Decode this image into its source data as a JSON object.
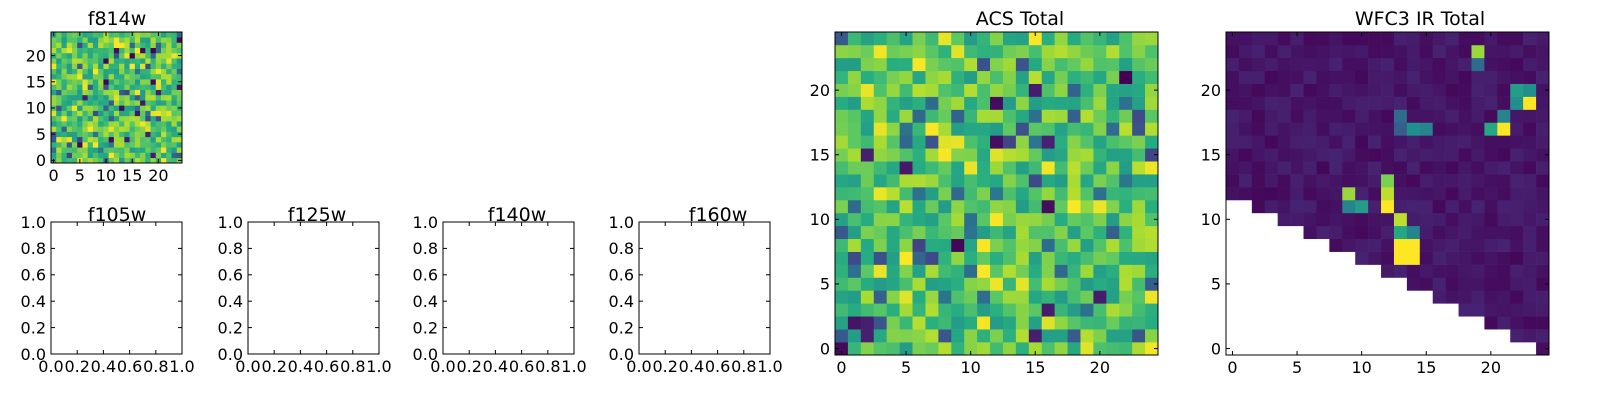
{
  "figure": {
    "colormap": [
      "#440154",
      "#472c7a",
      "#3b518b",
      "#2c718e",
      "#21908d",
      "#27ad81",
      "#5cc863",
      "#aadc32",
      "#fde725"
    ]
  },
  "chart_data": [
    {
      "id": "f814w",
      "type": "heatmap",
      "title": "f814w",
      "xlabel": "",
      "ylabel": "",
      "rows": 25,
      "cols": 25,
      "xlim": [
        -0.5,
        24.5
      ],
      "ylim": [
        -0.5,
        24.5
      ],
      "xticks": [
        0,
        5,
        10,
        15,
        20
      ],
      "yticks": [
        0,
        5,
        10,
        15,
        20
      ],
      "grid": false,
      "values_note": "",
      "seed": 814,
      "low_rows": 0
    },
    {
      "id": "f105w",
      "type": "empty",
      "title": "f105w",
      "xlim": [
        0,
        1
      ],
      "ylim": [
        0,
        1
      ],
      "xticks": [
        "0.0",
        "0.2",
        "0.4",
        "0.6",
        "0.8",
        "1.0"
      ],
      "yticks": [
        "0.0",
        "0.2",
        "0.4",
        "0.6",
        "0.8",
        "1.0"
      ]
    },
    {
      "id": "f125w",
      "type": "empty",
      "title": "f125w",
      "xlim": [
        0,
        1
      ],
      "ylim": [
        0,
        1
      ],
      "xticks": [
        "0.0",
        "0.2",
        "0.4",
        "0.6",
        "0.8",
        "1.0"
      ],
      "yticks": [
        "0.0",
        "0.2",
        "0.4",
        "0.6",
        "0.8",
        "1.0"
      ]
    },
    {
      "id": "f140w",
      "type": "empty",
      "title": "f140w",
      "xlim": [
        0,
        1
      ],
      "ylim": [
        0,
        1
      ],
      "xticks": [
        "0.0",
        "0.2",
        "0.4",
        "0.6",
        "0.8",
        "1.0"
      ],
      "yticks": [
        "0.0",
        "0.2",
        "0.4",
        "0.6",
        "0.8",
        "1.0"
      ]
    },
    {
      "id": "f160w",
      "type": "empty",
      "title": "f160w",
      "xlim": [
        0,
        1
      ],
      "ylim": [
        0,
        1
      ],
      "xticks": [
        "0.0",
        "0.2",
        "0.4",
        "0.6",
        "0.8",
        "1.0"
      ],
      "yticks": [
        "0.0",
        "0.2",
        "0.4",
        "0.6",
        "0.8",
        "1.0"
      ]
    },
    {
      "id": "acs-total",
      "type": "heatmap",
      "title": "ACS Total",
      "rows": 25,
      "cols": 25,
      "xlim": [
        -0.5,
        24.5
      ],
      "ylim": [
        -0.5,
        24.5
      ],
      "xticks": [
        0,
        5,
        10,
        15,
        20
      ],
      "yticks": [
        0,
        5,
        10,
        15,
        20
      ],
      "grid": false,
      "seed": 2017
    },
    {
      "id": "wfc3-ir-total",
      "type": "heatmap",
      "title": "WFC3 IR Total",
      "rows": 25,
      "cols": 25,
      "xlim": [
        -0.5,
        24.5
      ],
      "ylim": [
        -0.5,
        24.5
      ],
      "xticks": [
        0,
        5,
        10,
        15,
        20
      ],
      "yticks": [
        0,
        5,
        10,
        15,
        20
      ],
      "grid": false,
      "masked_lower_triangle": true,
      "bright_pixels": [
        {
          "x": 19,
          "y": 23,
          "v": 0.85
        },
        {
          "x": 19,
          "y": 22,
          "v": 0.35
        },
        {
          "x": 22,
          "y": 20,
          "v": 0.55
        },
        {
          "x": 23,
          "y": 20,
          "v": 0.5
        },
        {
          "x": 23,
          "y": 19,
          "v": 1.0
        },
        {
          "x": 22,
          "y": 19,
          "v": 0.5
        },
        {
          "x": 21,
          "y": 18,
          "v": 0.45
        },
        {
          "x": 20,
          "y": 17,
          "v": 0.6
        },
        {
          "x": 21,
          "y": 17,
          "v": 1.0
        },
        {
          "x": 13,
          "y": 18,
          "v": 0.35
        },
        {
          "x": 14,
          "y": 17,
          "v": 0.5
        },
        {
          "x": 15,
          "y": 17,
          "v": 0.45
        },
        {
          "x": 13,
          "y": 17,
          "v": 0.3
        },
        {
          "x": 9,
          "y": 12,
          "v": 0.85
        },
        {
          "x": 9,
          "y": 11,
          "v": 0.45
        },
        {
          "x": 10,
          "y": 11,
          "v": 0.55
        },
        {
          "x": 12,
          "y": 13,
          "v": 0.8
        },
        {
          "x": 12,
          "y": 12,
          "v": 0.9
        },
        {
          "x": 12,
          "y": 11,
          "v": 1.0
        },
        {
          "x": 13,
          "y": 10,
          "v": 0.9
        },
        {
          "x": 13,
          "y": 9,
          "v": 0.6
        },
        {
          "x": 14,
          "y": 9,
          "v": 0.45
        },
        {
          "x": 13,
          "y": 8,
          "v": 1.0
        },
        {
          "x": 14,
          "y": 8,
          "v": 1.0
        },
        {
          "x": 13,
          "y": 7,
          "v": 1.0
        },
        {
          "x": 14,
          "y": 7,
          "v": 1.0
        }
      ]
    }
  ]
}
